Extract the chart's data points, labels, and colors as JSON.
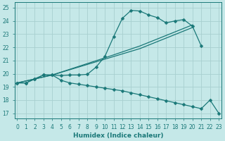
{
  "xlabel": "Humidex (Indice chaleur)",
  "bg_color": "#c5e8e8",
  "grid_color": "#a8d0d0",
  "line_color": "#1a7878",
  "xlim": [
    -0.3,
    23.3
  ],
  "ylim": [
    16.6,
    25.4
  ],
  "xticks": [
    0,
    1,
    2,
    3,
    4,
    5,
    6,
    7,
    8,
    9,
    10,
    11,
    12,
    13,
    14,
    15,
    16,
    17,
    18,
    19,
    20,
    21,
    22,
    23
  ],
  "yticks": [
    17,
    18,
    19,
    20,
    21,
    22,
    23,
    24,
    25
  ],
  "series": [
    {
      "x": [
        0,
        1,
        2,
        3,
        4,
        5,
        6,
        7,
        8,
        9,
        10,
        11,
        12,
        13,
        14,
        15,
        16,
        17,
        18,
        19,
        20,
        21
      ],
      "y": [
        19.3,
        19.3,
        19.6,
        19.9,
        19.9,
        19.85,
        19.9,
        19.9,
        19.95,
        20.5,
        21.3,
        22.8,
        24.2,
        24.8,
        24.75,
        24.45,
        24.25,
        23.85,
        24.0,
        24.1,
        23.6,
        22.1
      ]
    },
    {
      "x": [
        0,
        4,
        10,
        14,
        20
      ],
      "y": [
        19.3,
        19.9,
        21.2,
        22.1,
        23.7
      ]
    },
    {
      "x": [
        0,
        4,
        10,
        14,
        20
      ],
      "y": [
        19.3,
        19.9,
        21.1,
        21.9,
        23.5
      ]
    },
    {
      "x": [
        0,
        1,
        2,
        3,
        4,
        5,
        6,
        7,
        8,
        9,
        10,
        11,
        12,
        13,
        14,
        15,
        16,
        17,
        18,
        19,
        20,
        21,
        22,
        23
      ],
      "y": [
        19.3,
        19.3,
        19.6,
        19.9,
        19.9,
        19.5,
        19.3,
        19.2,
        19.1,
        19.0,
        18.9,
        18.8,
        18.7,
        18.55,
        18.4,
        18.25,
        18.1,
        17.95,
        17.8,
        17.65,
        17.5,
        17.35,
        18.0,
        17.0
      ]
    }
  ],
  "markersize": 2.5,
  "linewidth": 0.9,
  "xlabel_fontsize": 6.5,
  "tick_fontsize": 5.5
}
